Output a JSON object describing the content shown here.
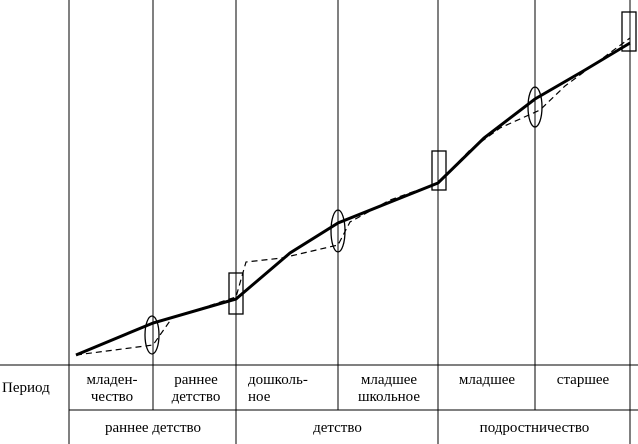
{
  "table": {
    "row_header": "Период",
    "periods": [
      {
        "line1": "младен-",
        "line2": "чество"
      },
      {
        "line1": "раннее",
        "line2": "детство"
      },
      {
        "line1": "дошколь-",
        "line2": "ное"
      },
      {
        "line1": "младшее",
        "line2": "школьное"
      },
      {
        "line1": "младшее",
        "line2": ""
      },
      {
        "line1": "старшее",
        "line2": ""
      }
    ],
    "eras": [
      "раннее детство",
      "детство",
      "подростничество"
    ]
  },
  "diagram": {
    "boundary_markers": [
      {
        "shape": "ellipse",
        "between": [
          "младенчество",
          "раннее детство"
        ]
      },
      {
        "shape": "rectangle",
        "between": [
          "раннее детство",
          "дошкольное"
        ]
      },
      {
        "shape": "ellipse",
        "between": [
          "дошкольное",
          "младшее школьное"
        ]
      },
      {
        "shape": "rectangle",
        "between": [
          "младшее школьное",
          "младшее подростковое"
        ]
      },
      {
        "shape": "ellipse",
        "between": [
          "младшее подростковое",
          "старшее подростковое"
        ]
      },
      {
        "shape": "rectangle",
        "between": [
          "старшее подростковое",
          "end"
        ]
      }
    ],
    "solid_curve": "development-line",
    "dashed_curve": "stepwise-line"
  }
}
